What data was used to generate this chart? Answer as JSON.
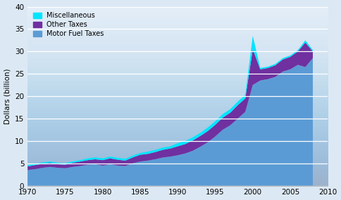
{
  "years": [
    1970,
    1971,
    1972,
    1973,
    1974,
    1975,
    1976,
    1977,
    1978,
    1979,
    1980,
    1981,
    1982,
    1983,
    1984,
    1985,
    1986,
    1987,
    1988,
    1989,
    1990,
    1991,
    1992,
    1993,
    1994,
    1995,
    1996,
    1997,
    1998,
    1999,
    2000,
    2001,
    2002,
    2003,
    2004,
    2005,
    2006,
    2007,
    2008
  ],
  "motor_fuel": [
    3.5,
    3.7,
    4.0,
    4.2,
    4.0,
    3.9,
    4.2,
    4.4,
    4.7,
    4.8,
    4.5,
    4.8,
    4.5,
    4.4,
    5.0,
    5.4,
    5.6,
    5.9,
    6.3,
    6.5,
    6.8,
    7.2,
    7.8,
    8.7,
    9.7,
    11.0,
    12.5,
    13.5,
    15.0,
    16.5,
    22.5,
    23.5,
    23.8,
    24.3,
    25.5,
    26.0,
    27.0,
    26.5,
    28.5
  ],
  "other_taxes": [
    0.8,
    0.9,
    0.9,
    0.9,
    0.8,
    0.8,
    0.9,
    1.0,
    1.0,
    1.1,
    1.2,
    1.3,
    1.3,
    1.2,
    1.3,
    1.5,
    1.5,
    1.6,
    1.7,
    1.8,
    2.0,
    2.1,
    2.3,
    2.4,
    2.5,
    2.6,
    2.7,
    2.8,
    3.0,
    3.0,
    8.0,
    2.5,
    2.5,
    2.6,
    2.7,
    2.8,
    3.0,
    5.5,
    1.5
  ],
  "miscellaneous": [
    0.3,
    0.3,
    0.3,
    0.3,
    0.3,
    0.3,
    0.3,
    0.3,
    0.4,
    0.4,
    0.4,
    0.4,
    0.4,
    0.4,
    0.4,
    0.4,
    0.5,
    0.5,
    0.5,
    0.5,
    0.7,
    0.7,
    0.7,
    0.7,
    0.8,
    0.8,
    0.8,
    0.8,
    0.8,
    0.8,
    3.0,
    0.3,
    0.3,
    0.3,
    0.3,
    0.3,
    0.3,
    0.5,
    0.3
  ],
  "motor_fuel_color": "#5b9bd5",
  "other_taxes_color": "#7030a0",
  "miscellaneous_color": "#00e5ff",
  "background_color": "#dce9f5",
  "plot_bg_top": "#e8f0f8",
  "plot_bg_bottom": "#c5d8f0",
  "ylabel": "Dollars (billion)",
  "ylim": [
    0,
    40
  ],
  "xlim": [
    1970,
    2010
  ],
  "yticks": [
    0,
    5,
    10,
    15,
    20,
    25,
    30,
    35,
    40
  ],
  "xticks": [
    1970,
    1975,
    1980,
    1985,
    1990,
    1995,
    2000,
    2005,
    2010
  ],
  "legend_labels": [
    "Miscellaneous",
    "Other Taxes",
    "Motor Fuel Taxes"
  ],
  "legend_colors": [
    "#00e5ff",
    "#7030a0",
    "#5b9bd5"
  ]
}
